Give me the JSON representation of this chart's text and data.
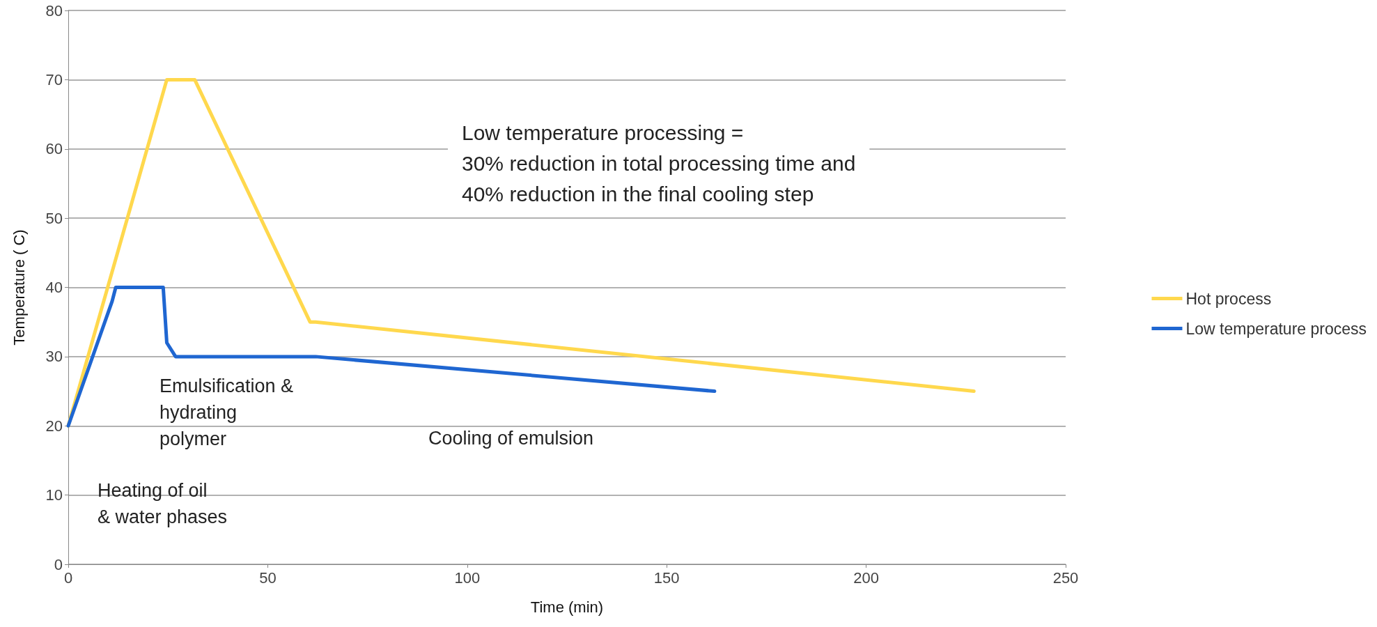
{
  "chart_data": {
    "type": "line",
    "xlabel": "Time (min)",
    "ylabel": "Temperature ( C)",
    "series": [
      {
        "name": "Hot process",
        "color": "#ffd84d",
        "x": [
          0,
          24.7,
          31.7,
          60.6,
          62,
          227
        ],
        "values": [
          20,
          70,
          70,
          35,
          35,
          25
        ]
      },
      {
        "name": "Low temperature process",
        "color": "#1f66d1",
        "x": [
          0,
          11,
          11.9,
          23.8,
          24.7,
          26.9,
          62,
          162
        ],
        "values": [
          20,
          38,
          40,
          40,
          32,
          30,
          30,
          25
        ]
      }
    ],
    "xlim": [
      0,
      250
    ],
    "xticks": [
      0,
      50,
      100,
      150,
      200,
      250
    ],
    "ylim": [
      0,
      80
    ],
    "yticks": [
      0,
      10,
      20,
      30,
      40,
      50,
      60,
      70,
      80
    ],
    "grid": "y",
    "legend": "right",
    "marker": "none",
    "line_style": "solid",
    "annotations": [
      "Low temperature processing =\n30% reduction in total processing time and\n40% reduction in the final cooling step",
      "Emulsification &\nhydrating\npolymer",
      "Cooling of emulsion",
      "Heating of oil\n& water phases"
    ]
  }
}
